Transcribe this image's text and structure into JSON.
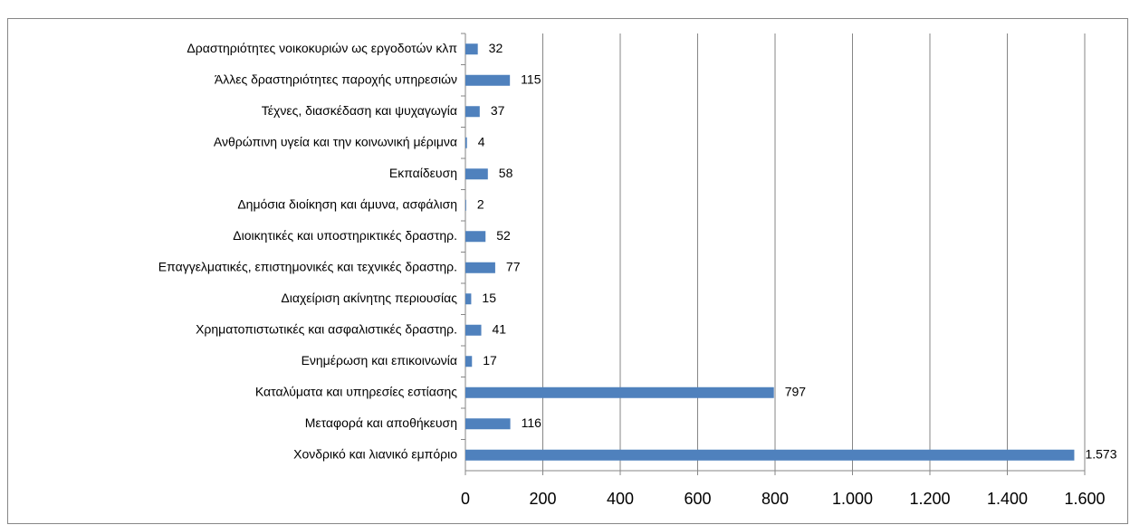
{
  "chart_data": {
    "type": "barh",
    "categories": [
      "Δραστηριότητες νοικοκυριών ως εργοδοτών κλπ",
      "Άλλες δραστηριότητες παροχής υπηρεσιών",
      "Τέχνες, διασκέδαση και ψυχαγωγία",
      "Ανθρώπινη υγεία και την κοινωνική μέριμνα",
      "Εκπαίδευση",
      "Δημόσια διοίκηση και άμυνα, ασφάλιση",
      "Διοικητικές και υποστηρικτικές δραστηρ.",
      "Επαγγελματικές, επιστημονικές και τεχνικές δραστηρ.",
      "Διαχείριση ακίνητης περιουσίας",
      "Χρηματοπιστωτικές και ασφαλιστικές δραστηρ.",
      "Ενημέρωση και επικοινωνία",
      "Καταλύματα και υπηρεσίες εστίασης",
      "Μεταφορά και αποθήκευση",
      "Χονδρικό και λιανικό εμπόριο"
    ],
    "values": [
      32,
      115,
      37,
      4,
      58,
      2,
      52,
      77,
      15,
      41,
      17,
      797,
      116,
      1573
    ],
    "value_labels": [
      "32",
      "115",
      "37",
      "4",
      "58",
      "2",
      "52",
      "77",
      "15",
      "41",
      "17",
      "797",
      "116",
      "1.573"
    ],
    "color": "#4f81bd",
    "xlim": [
      0,
      1600
    ],
    "xticks": [
      0,
      200,
      400,
      600,
      800,
      {
        "value": 1000,
        "label": "1.000"
      },
      {
        "value": 1200,
        "label": "1.200"
      },
      {
        "value": 1400,
        "label": "1.400"
      },
      {
        "value": 1600,
        "label": "1.600"
      }
    ],
    "grid": true
  }
}
